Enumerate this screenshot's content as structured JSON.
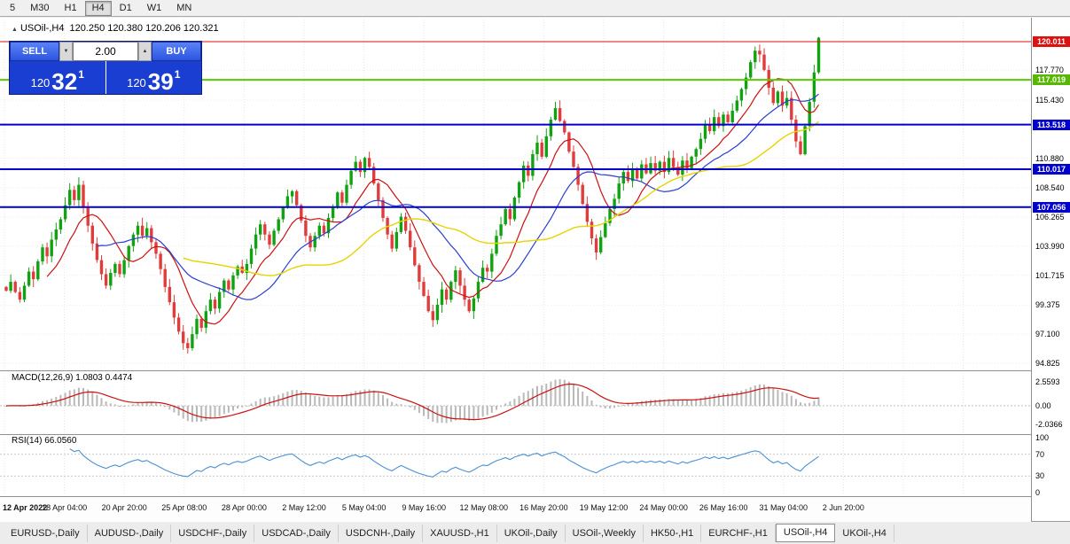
{
  "icons": {
    "panel_arrow": "▲",
    "spinner_up": "▲",
    "spinner_down": "▼"
  },
  "toolbar": {
    "timeframes": [
      "5",
      "M30",
      "H1",
      "H4",
      "D1",
      "W1",
      "MN"
    ],
    "active_timeframe": "H4"
  },
  "chart_title": {
    "symbol": "USOil-,H4",
    "ohlc": "120.250 120.380 120.206 120.321"
  },
  "trade_panel": {
    "sell_label": "SELL",
    "buy_label": "BUY",
    "volume": "2.00",
    "sell_price": {
      "prefix": "120",
      "big": "32",
      "sup": "1"
    },
    "buy_price": {
      "prefix": "120",
      "big": "39",
      "sup": "1"
    }
  },
  "price_axis": {
    "labels": [
      "117.770",
      "115.430",
      "110.880",
      "108.540",
      "106.265",
      "103.990",
      "101.715",
      "99.375",
      "97.100",
      "94.825"
    ],
    "tags": [
      {
        "value": "120.011",
        "color": "#dd1111"
      },
      {
        "value": "117.019",
        "color": "#56b800"
      },
      {
        "value": "113.518",
        "color": "#0000cc"
      },
      {
        "value": "110.017",
        "color": "#0000cc"
      },
      {
        "value": "107.056",
        "color": "#0000cc"
      }
    ]
  },
  "levels": [
    {
      "price": 120.011,
      "color": "#dd1111",
      "width": 1
    },
    {
      "price": 117.019,
      "color": "#55cc00",
      "width": 2
    },
    {
      "price": 113.518,
      "color": "#0000cc",
      "width": 2
    },
    {
      "price": 110.017,
      "color": "#0000cc",
      "width": 2
    },
    {
      "price": 107.056,
      "color": "#0000cc",
      "width": 2
    }
  ],
  "chart_data": {
    "type": "candlestick",
    "symbol": "USOil-",
    "timeframe": "H4",
    "title": "USOil-,H4 120.250 120.380 120.206 120.321",
    "x_range": [
      "12 Apr 2022",
      "2 Jun 2022"
    ],
    "y_range": [
      94.26,
      121.9
    ],
    "last_bar": {
      "open": 120.25,
      "high": 120.38,
      "low": 120.206,
      "close": 120.321
    },
    "first_open": 100.8,
    "up_color": "#11a211",
    "down_color": "#e03c3c",
    "ma_colors": {
      "fast": "#cc1111",
      "mid": "#2a3fd0",
      "slow": "#e6d400"
    },
    "closes": [
      100.5,
      101.2,
      100.4,
      99.8,
      100.9,
      102.0,
      101.4,
      102.8,
      103.9,
      103.2,
      104.5,
      105.3,
      106.1,
      107.2,
      108.4,
      107.6,
      108.8,
      107.0,
      105.6,
      104.2,
      102.9,
      101.8,
      100.9,
      101.9,
      102.6,
      101.8,
      102.9,
      104.0,
      104.9,
      105.6,
      104.8,
      105.4,
      104.3,
      103.4,
      102.2,
      100.8,
      99.6,
      98.4,
      97.3,
      96.4,
      96.0,
      97.1,
      98.3,
      97.6,
      98.9,
      99.8,
      99.1,
      100.4,
      101.3,
      100.6,
      101.7,
      102.4,
      101.9,
      102.6,
      103.8,
      104.9,
      105.7,
      104.9,
      104.1,
      105.2,
      106.1,
      107.0,
      107.9,
      108.3,
      107.2,
      106.0,
      104.8,
      103.9,
      104.8,
      105.6,
      105.0,
      106.2,
      107.1,
      108.2,
      107.4,
      108.8,
      109.9,
      110.6,
      109.8,
      110.9,
      110.2,
      108.9,
      107.6,
      106.2,
      104.9,
      103.8,
      105.1,
      106.3,
      105.2,
      103.9,
      102.5,
      101.2,
      100.1,
      98.9,
      98.2,
      99.4,
      100.6,
      99.8,
      101.2,
      102.1,
      100.9,
      99.8,
      98.9,
      99.9,
      101.2,
      102.3,
      102.0,
      103.4,
      104.8,
      105.7,
      106.9,
      106.1,
      107.8,
      109.0,
      110.3,
      109.5,
      111.2,
      112.1,
      111.0,
      112.6,
      113.9,
      114.8,
      113.8,
      112.9,
      111.4,
      110.2,
      108.8,
      107.3,
      105.9,
      104.6,
      103.5,
      104.7,
      105.8,
      106.9,
      107.7,
      108.9,
      109.8,
      109.1,
      110.0,
      109.3,
      110.4,
      109.7,
      110.5,
      109.9,
      110.6,
      109.8,
      110.9,
      110.2,
      109.6,
      110.7,
      110.1,
      111.0,
      111.6,
      112.4,
      113.5,
      113.0,
      114.1,
      113.4,
      114.3,
      113.7,
      114.6,
      115.4,
      116.3,
      117.2,
      118.4,
      119.3,
      119.0,
      117.8,
      116.4,
      115.2,
      116.1,
      115.0,
      115.6,
      113.9,
      112.2,
      111.2,
      113.4,
      115.3,
      117.6,
      120.32
    ],
    "time_labels": [
      "12 Apr 2022",
      "18 Apr 04:00",
      "20 Apr 20:00",
      "25 Apr 08:00",
      "28 Apr 00:00",
      "2 May 12:00",
      "5 May 04:00",
      "9 May 16:00",
      "12 May 08:00",
      "16 May 20:00",
      "19 May 12:00",
      "24 May 00:00",
      "26 May 16:00",
      "31 May 04:00",
      "2 Jun 20:00"
    ],
    "indicators": {
      "macd": {
        "label": "MACD(12,26,9)",
        "values": "1.0803 0.4474",
        "axis": [
          "2.5593",
          "0.00",
          "-2.0366"
        ],
        "histogram_color": "#b9b9b9",
        "signal_color": "#cc1111"
      },
      "rsi": {
        "label": "RSI(14)",
        "value": "66.0560",
        "axis": [
          "100",
          "70",
          "30",
          "0"
        ],
        "levels": [
          70,
          30
        ],
        "line_color": "#4a90d2"
      }
    }
  },
  "tabs": {
    "items": [
      "EURUSD-,Daily",
      "AUDUSD-,Daily",
      "USDCHF-,Daily",
      "USDCAD-,Daily",
      "USDCNH-,Daily",
      "XAUUSD-,H1",
      "UKOil-,Daily",
      "USOil-,Weekly",
      "HK50-,H1",
      "EURCHF-,H1",
      "USOil-,H4",
      "UKOil-,H4"
    ],
    "active": "USOil-,H4"
  }
}
